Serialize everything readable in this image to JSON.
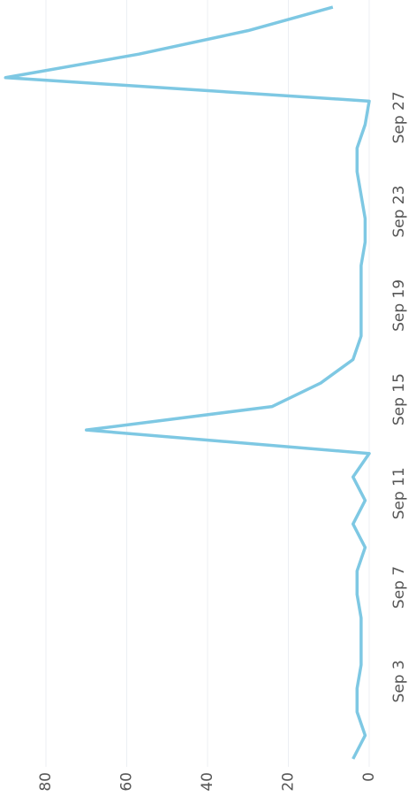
{
  "chart_data": {
    "type": "line",
    "categories": [
      null,
      null,
      null,
      "Sep 3",
      null,
      null,
      null,
      "Sep 7",
      null,
      null,
      null,
      "Sep 11",
      null,
      null,
      null,
      "Sep 15",
      null,
      null,
      null,
      "Sep 19",
      null,
      null,
      null,
      "Sep 23",
      null,
      null,
      null,
      "Sep 27",
      null,
      null,
      null,
      null,
      null
    ],
    "values": [
      4,
      1,
      3,
      3,
      2,
      2,
      2,
      3,
      3,
      1,
      4,
      1,
      4,
      0,
      70,
      24,
      12,
      4,
      2,
      2,
      2,
      2,
      1,
      1,
      2,
      3,
      3,
      1,
      0,
      90,
      57,
      30,
      9
    ],
    "color": "#7ec8e3",
    "ylim": [
      0,
      91
    ],
    "yticks": [
      0,
      20,
      40,
      60,
      80
    ],
    "grid": true
  }
}
